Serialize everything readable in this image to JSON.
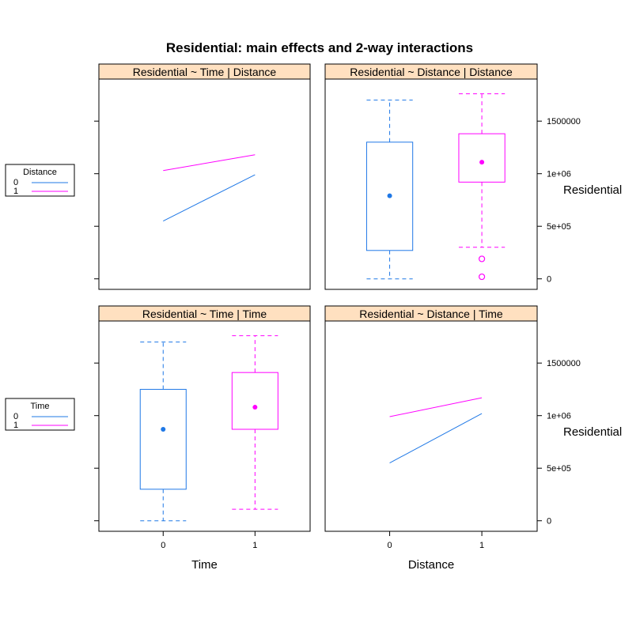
{
  "chart_data": {
    "title": "Residential: main effects and 2-way interactions",
    "type": "trellis",
    "colors": {
      "group0": "#1f78e6",
      "group1": "#ff00ff",
      "strip": "#ffe0c0"
    },
    "y_axis": {
      "label": "Residential",
      "ylim": [
        -100000,
        1900000
      ],
      "ticks": [
        0,
        500000,
        1000000,
        1500000
      ],
      "tick_labels": [
        "0",
        "5e+05",
        "1e+06",
        "1500000"
      ]
    },
    "x_axis": {
      "levels": [
        "0",
        "1"
      ]
    },
    "legends": [
      {
        "title": "Distance",
        "entries": [
          {
            "label": "0"
          },
          {
            "label": "1"
          }
        ]
      },
      {
        "title": "Time",
        "entries": [
          {
            "label": "0"
          },
          {
            "label": "1"
          }
        ]
      }
    ],
    "panels": [
      {
        "strip": "Residential ~ Time | Distance",
        "type": "line",
        "lines": [
          {
            "group": 0,
            "y": [
              550000,
              990000
            ]
          },
          {
            "group": 1,
            "y": [
              1030000,
              1180000
            ]
          }
        ]
      },
      {
        "strip": "Residential ~ Distance | Distance",
        "type": "box",
        "boxes": [
          {
            "group": 0,
            "whisker_low": 0,
            "q1": 270000,
            "median": 790000,
            "q3": 1300000,
            "whisker_high": 1700000,
            "outliers": []
          },
          {
            "group": 1,
            "whisker_low": 300000,
            "q1": 920000,
            "median": 1110000,
            "q3": 1380000,
            "whisker_high": 1760000,
            "outliers": [
              190000,
              20000
            ]
          }
        ]
      },
      {
        "strip": "Residential ~ Time | Time",
        "type": "box",
        "xlabel": "Time",
        "boxes": [
          {
            "group": 0,
            "whisker_low": 0,
            "q1": 300000,
            "median": 870000,
            "q3": 1250000,
            "whisker_high": 1700000,
            "outliers": []
          },
          {
            "group": 1,
            "whisker_low": 110000,
            "q1": 870000,
            "median": 1080000,
            "q3": 1410000,
            "whisker_high": 1760000,
            "outliers": []
          }
        ]
      },
      {
        "strip": "Residential ~ Distance | Time",
        "type": "line",
        "xlabel": "Distance",
        "lines": [
          {
            "group": 0,
            "y": [
              550000,
              1020000
            ]
          },
          {
            "group": 1,
            "y": [
              990000,
              1170000
            ]
          }
        ]
      }
    ]
  }
}
